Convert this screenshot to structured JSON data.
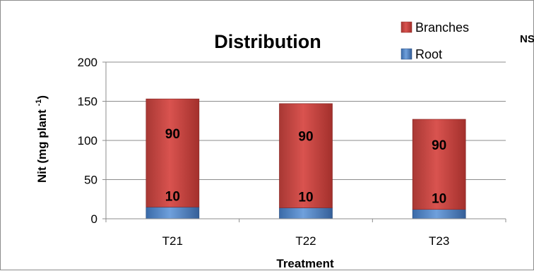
{
  "chart_data": {
    "type": "bar",
    "stacked": true,
    "title": "Distribution",
    "xlabel": "Treatment",
    "ylabel": "Nit (mg plant -1)",
    "ylabel_main": "Nit (mg plant ",
    "ylabel_sup": "-1",
    "ylabel_close": ")",
    "corner_note": "NS",
    "categories": [
      "T21",
      "T22",
      "T23"
    ],
    "ylim": [
      0,
      200
    ],
    "yticks": [
      0,
      50,
      100,
      150,
      200
    ],
    "grid": true,
    "legend_position": "top-right",
    "series": [
      {
        "name": "Root",
        "values": [
          15,
          14,
          12
        ],
        "data_labels": [
          "10",
          "10",
          "10"
        ],
        "color": "#4f81bd"
      },
      {
        "name": "Branches",
        "values": [
          138,
          133,
          115
        ],
        "data_labels": [
          "90",
          "90",
          "90"
        ],
        "color": "#c0504d"
      }
    ]
  }
}
